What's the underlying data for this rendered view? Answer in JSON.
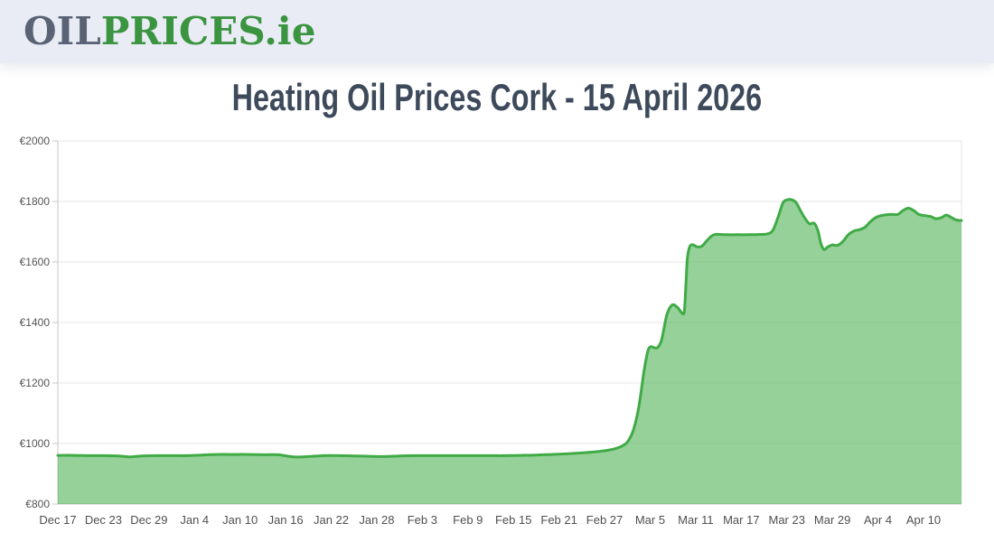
{
  "header": {
    "logo_part_gray": "OIL",
    "logo_part_green": "PRICES",
    "logo_tld": ".ie"
  },
  "page": {
    "title": "Heating Oil Prices Cork - 15 April 2026"
  },
  "theme": {
    "header_bg": "#e9ecf4",
    "logo_gray": "#5a6375",
    "logo_green": "#3a9440",
    "title_text": "#3d4a5b"
  },
  "chart_data": {
    "type": "area",
    "title": "Heating Oil Prices Cork - 15 April 2026",
    "currency_symbol": "€",
    "ylim": [
      800,
      2000
    ],
    "ytick_values": [
      800,
      1000,
      1200,
      1400,
      1600,
      1800,
      2000
    ],
    "ytick_labels": [
      "€800",
      "€1000",
      "€1200",
      "€1400",
      "€1600",
      "€1800",
      "€2000"
    ],
    "xtick_labels": [
      "Dec 17",
      "Dec 23",
      "Dec 29",
      "Jan 4",
      "Jan 10",
      "Jan 16",
      "Jan 22",
      "Jan 28",
      "Feb 3",
      "Feb 9",
      "Feb 15",
      "Feb 21",
      "Feb 27",
      "Mar 5",
      "Mar 11",
      "Mar 17",
      "Mar 23",
      "Mar 29",
      "Apr 4",
      "Apr 10"
    ],
    "xtick_day_offsets": [
      0,
      6,
      12,
      18,
      24,
      30,
      36,
      42,
      48,
      54,
      60,
      66,
      72,
      78,
      84,
      90,
      96,
      102,
      108,
      114
    ],
    "x_domain_days": [
      0,
      119
    ],
    "grid": true,
    "legend": false,
    "points_day_value": [
      [
        0,
        961
      ],
      [
        2,
        961
      ],
      [
        4,
        960
      ],
      [
        6,
        960
      ],
      [
        8,
        959
      ],
      [
        9.5,
        956
      ],
      [
        11,
        959
      ],
      [
        13,
        960
      ],
      [
        15,
        960
      ],
      [
        17,
        960
      ],
      [
        19,
        962
      ],
      [
        21,
        964
      ],
      [
        23,
        964
      ],
      [
        25,
        964
      ],
      [
        27,
        963
      ],
      [
        29,
        963
      ],
      [
        31,
        956
      ],
      [
        33,
        957
      ],
      [
        35,
        960
      ],
      [
        37,
        960
      ],
      [
        39,
        959
      ],
      [
        41,
        958
      ],
      [
        43,
        957
      ],
      [
        45,
        959
      ],
      [
        47,
        960
      ],
      [
        49,
        960
      ],
      [
        51,
        960
      ],
      [
        53,
        960
      ],
      [
        55,
        960
      ],
      [
        57,
        960
      ],
      [
        59,
        960
      ],
      [
        61,
        961
      ],
      [
        63,
        962
      ],
      [
        65,
        964
      ],
      [
        67,
        966
      ],
      [
        69,
        969
      ],
      [
        71,
        973
      ],
      [
        72.5,
        978
      ],
      [
        74,
        988
      ],
      [
        75,
        1005
      ],
      [
        75.8,
        1045
      ],
      [
        76.5,
        1120
      ],
      [
        77.2,
        1240
      ],
      [
        77.7,
        1305
      ],
      [
        78.1,
        1320
      ],
      [
        78.9,
        1316
      ],
      [
        79.5,
        1342
      ],
      [
        80.2,
        1425
      ],
      [
        80.9,
        1458
      ],
      [
        81.6,
        1450
      ],
      [
        82.2,
        1431
      ],
      [
        82.5,
        1436
      ],
      [
        82.7,
        1520
      ],
      [
        82.9,
        1610
      ],
      [
        83.2,
        1650
      ],
      [
        83.6,
        1657
      ],
      [
        84.2,
        1650
      ],
      [
        84.8,
        1652
      ],
      [
        85.4,
        1668
      ],
      [
        86,
        1684
      ],
      [
        86.6,
        1691
      ],
      [
        88,
        1690
      ],
      [
        89.5,
        1690
      ],
      [
        91,
        1690
      ],
      [
        92.5,
        1691
      ],
      [
        93.5,
        1693
      ],
      [
        94.2,
        1706
      ],
      [
        94.9,
        1752
      ],
      [
        95.5,
        1796
      ],
      [
        96,
        1805
      ],
      [
        96.6,
        1806
      ],
      [
        97.2,
        1797
      ],
      [
        97.8,
        1770
      ],
      [
        98.4,
        1744
      ],
      [
        99,
        1726
      ],
      [
        99.6,
        1728
      ],
      [
        100.1,
        1703
      ],
      [
        100.5,
        1660
      ],
      [
        100.9,
        1641
      ],
      [
        101.4,
        1650
      ],
      [
        102,
        1656
      ],
      [
        102.7,
        1655
      ],
      [
        103.4,
        1668
      ],
      [
        104.1,
        1690
      ],
      [
        104.9,
        1703
      ],
      [
        105.6,
        1707
      ],
      [
        106.3,
        1715
      ],
      [
        107,
        1733
      ],
      [
        107.8,
        1748
      ],
      [
        108.8,
        1755
      ],
      [
        109.8,
        1757
      ],
      [
        110.6,
        1757
      ],
      [
        111.3,
        1770
      ],
      [
        112,
        1778
      ],
      [
        112.7,
        1770
      ],
      [
        113.4,
        1757
      ],
      [
        114.2,
        1753
      ],
      [
        115,
        1750
      ],
      [
        115.6,
        1743
      ],
      [
        116.3,
        1746
      ],
      [
        117,
        1755
      ],
      [
        117.6,
        1748
      ],
      [
        118.3,
        1739
      ],
      [
        119,
        1737
      ]
    ],
    "colors": {
      "line": "#40ab46",
      "fill": "rgba(64,171,70,0.55)",
      "grid": "#e6e6e6",
      "axis": "#c7c7c7",
      "ytick_text": "#555555",
      "xtick_text": "#4f4f4f"
    }
  }
}
